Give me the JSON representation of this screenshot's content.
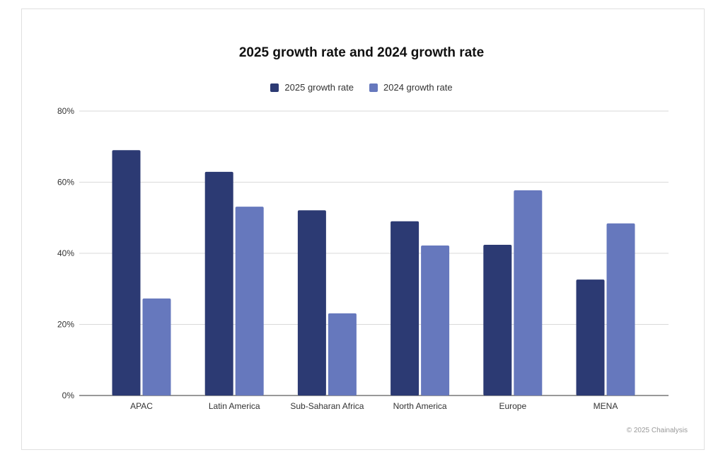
{
  "chart_data": {
    "type": "bar",
    "title": "2025 growth rate and 2024 growth rate",
    "categories": [
      "APAC",
      "Latin America",
      "Sub-Saharan Africa",
      "North America",
      "Europe",
      "MENA"
    ],
    "series": [
      {
        "name": "2025 growth rate",
        "color": "#2c3a73",
        "values": [
          69,
          62.9,
          52.1,
          49,
          42.4,
          32.6
        ]
      },
      {
        "name": "2024 growth rate",
        "color": "#6678bd",
        "values": [
          27.3,
          53.1,
          23.1,
          42.2,
          57.7,
          48.4
        ]
      }
    ],
    "ylim": [
      0,
      80
    ],
    "yticks": [
      "0%",
      "20%",
      "40%",
      "60%",
      "80%"
    ],
    "ytick_values": [
      0,
      20,
      40,
      60,
      80
    ],
    "grid": true,
    "legend_position": "top"
  },
  "credit": "© 2025 Chainalysis"
}
